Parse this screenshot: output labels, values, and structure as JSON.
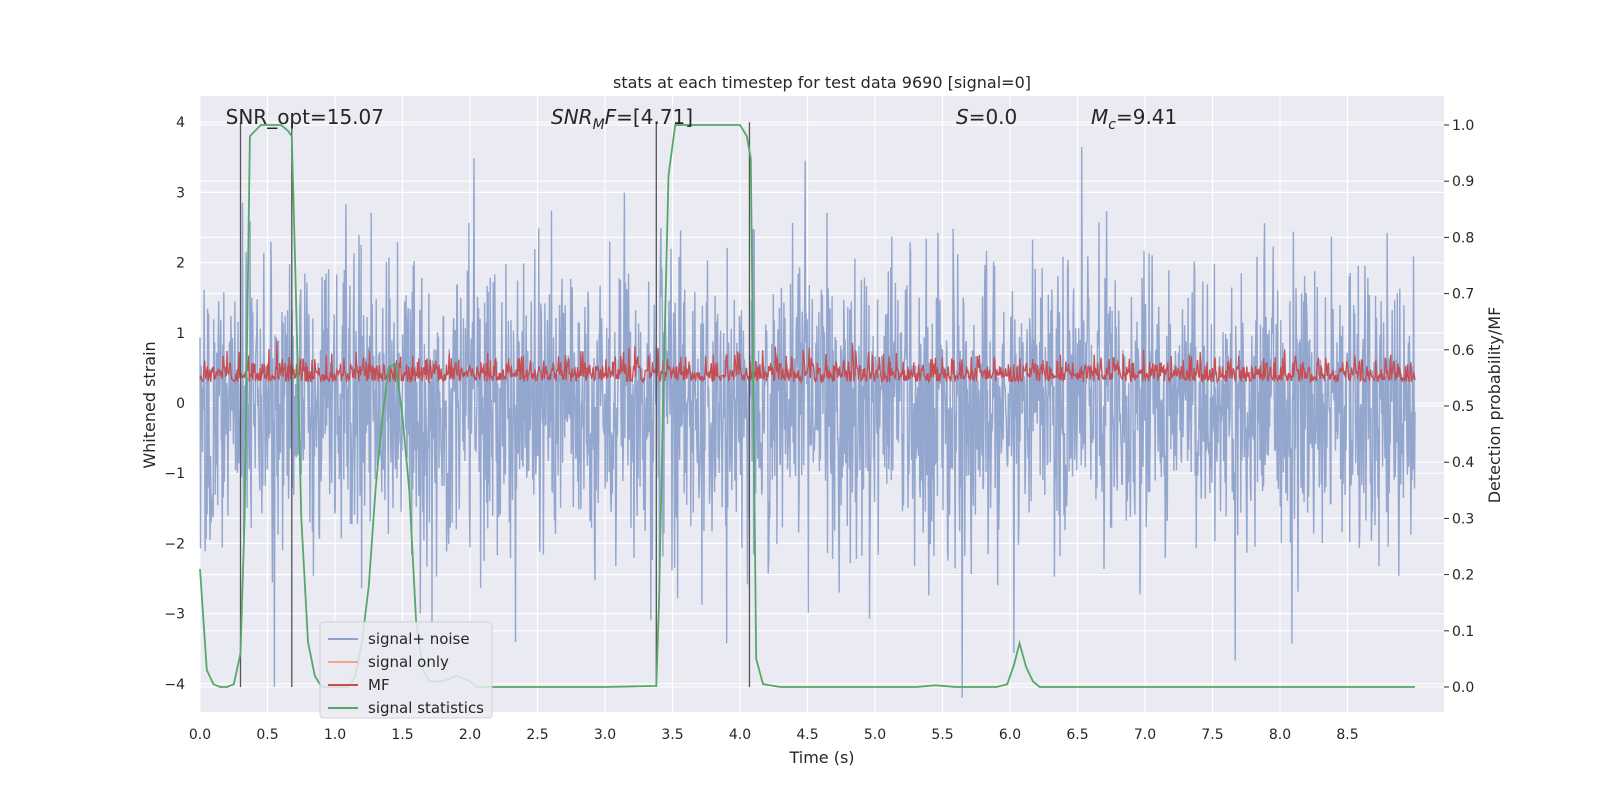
{
  "chart_data": {
    "type": "line",
    "title": "stats at each timestep for test data 9690 [signal=0]",
    "xlabel": "Time (s)",
    "ylabel_left": "Whitened strain",
    "ylabel_right": "Detection probability/MF",
    "xlim": [
      0,
      9.0
    ],
    "ylim_left": [
      -4.3,
      4.4
    ],
    "ylim_right": [
      -0.05,
      1.045
    ],
    "xticks": [
      "0.0",
      "0.5",
      "1.0",
      "1.5",
      "2.0",
      "2.5",
      "3.0",
      "3.5",
      "4.0",
      "4.5",
      "5.0",
      "5.5",
      "6.0",
      "6.5",
      "7.0",
      "7.5",
      "8.0",
      "8.5"
    ],
    "yticks_left": [
      "4",
      "3",
      "2",
      "1",
      "0",
      "−1",
      "−2",
      "−3",
      "−4"
    ],
    "yticks_right": [
      "1.0",
      "0.9",
      "0.8",
      "0.7",
      "0.6",
      "0.5",
      "0.4",
      "0.3",
      "0.2",
      "0.1",
      "0.0"
    ],
    "grid": true,
    "legend_position": "lower-left",
    "annotations": [
      {
        "text": "SNR_opt=15.07",
        "x": 0.19,
        "y": 4.0
      },
      {
        "text": "SNR_MF=[4.71]",
        "x": 2.6,
        "y": 4.0
      },
      {
        "text": "S=0.0",
        "x": 5.6,
        "y": 4.0
      },
      {
        "text": "M_c=9.41",
        "x": 6.6,
        "y": 4.0
      }
    ],
    "vertical_lines_x": [
      0.3,
      0.68,
      3.38,
      4.07
    ],
    "series": [
      {
        "name": "signal+ noise",
        "color": "#8ea2cb",
        "axis": "left",
        "style": "dense noise, amplitude about ±2, peaks to ±4"
      },
      {
        "name": "signal only",
        "color": "#f0a888",
        "axis": "left",
        "values": []
      },
      {
        "name": "MF",
        "color": "#c44e52",
        "axis": "left",
        "style": "noise band between 0 and 0.9, peaks near 1.0"
      },
      {
        "name": "signal statistics",
        "color": "#55a868",
        "axis": "right",
        "x": [
          0.0,
          0.05,
          0.1,
          0.15,
          0.2,
          0.25,
          0.3,
          0.33,
          0.37,
          0.45,
          0.5,
          0.6,
          0.65,
          0.68,
          0.71,
          0.75,
          0.8,
          0.85,
          0.9,
          0.95,
          1.0,
          1.05,
          1.1,
          1.15,
          1.2,
          1.25,
          1.3,
          1.35,
          1.4,
          1.45,
          1.5,
          1.55,
          1.6,
          1.65,
          1.7,
          1.75,
          1.8,
          1.85,
          1.9,
          1.95,
          2.0,
          2.05,
          2.1,
          2.5,
          3.0,
          3.38,
          3.4,
          3.43,
          3.47,
          3.52,
          3.6,
          4.0,
          4.05,
          4.08,
          4.12,
          4.17,
          4.3,
          5.0,
          5.3,
          5.45,
          5.6,
          5.9,
          5.98,
          6.03,
          6.07,
          6.12,
          6.17,
          6.22,
          6.3,
          7.0,
          8.0,
          9.0
        ],
        "values": [
          0.21,
          0.03,
          0.005,
          0.0,
          0.0,
          0.005,
          0.06,
          0.3,
          0.98,
          1.0,
          1.0,
          1.0,
          0.99,
          0.98,
          0.7,
          0.3,
          0.08,
          0.02,
          0.0,
          0.0,
          0.0,
          0.0,
          0.0,
          0.02,
          0.08,
          0.18,
          0.35,
          0.48,
          0.57,
          0.575,
          0.48,
          0.35,
          0.12,
          0.03,
          0.01,
          0.01,
          0.01,
          0.015,
          0.02,
          0.015,
          0.01,
          0.0,
          0.0,
          0.0,
          0.0,
          0.002,
          0.15,
          0.5,
          0.91,
          1.0,
          1.0,
          1.0,
          0.98,
          0.94,
          0.05,
          0.005,
          0.0,
          0.0,
          0.0,
          0.003,
          0.0,
          0.0,
          0.005,
          0.04,
          0.078,
          0.035,
          0.01,
          0.0,
          0.0,
          0.0,
          0.0,
          0.0
        ]
      }
    ]
  }
}
